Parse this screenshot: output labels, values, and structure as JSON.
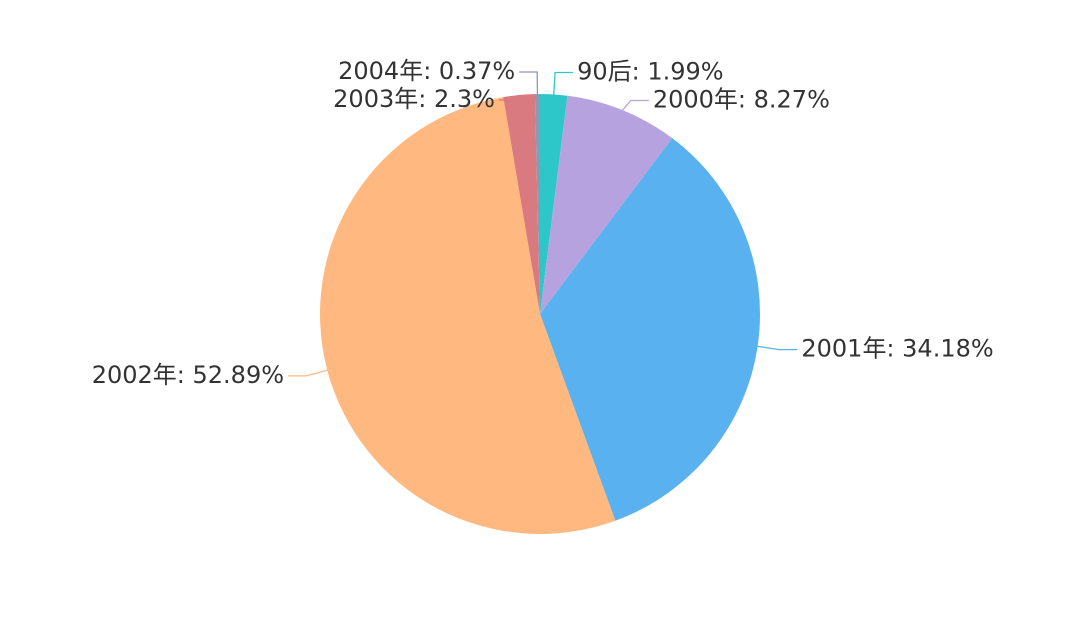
{
  "chart_data": {
    "type": "pie",
    "value_labels": [
      "90后: 1.99%",
      "2000年: 8.27%",
      "2001年: 34.18%",
      "2002年: 52.89%",
      "2003年: 2.3%",
      "2004年: 0.37%"
    ],
    "values": [
      1.99,
      8.27,
      34.18,
      52.89,
      2.3,
      0.37
    ],
    "colors": [
      "#2ec7c9",
      "#b6a2de",
      "#5ab1ef",
      "#ffb980",
      "#d87a80",
      "#8d98b3"
    ]
  }
}
